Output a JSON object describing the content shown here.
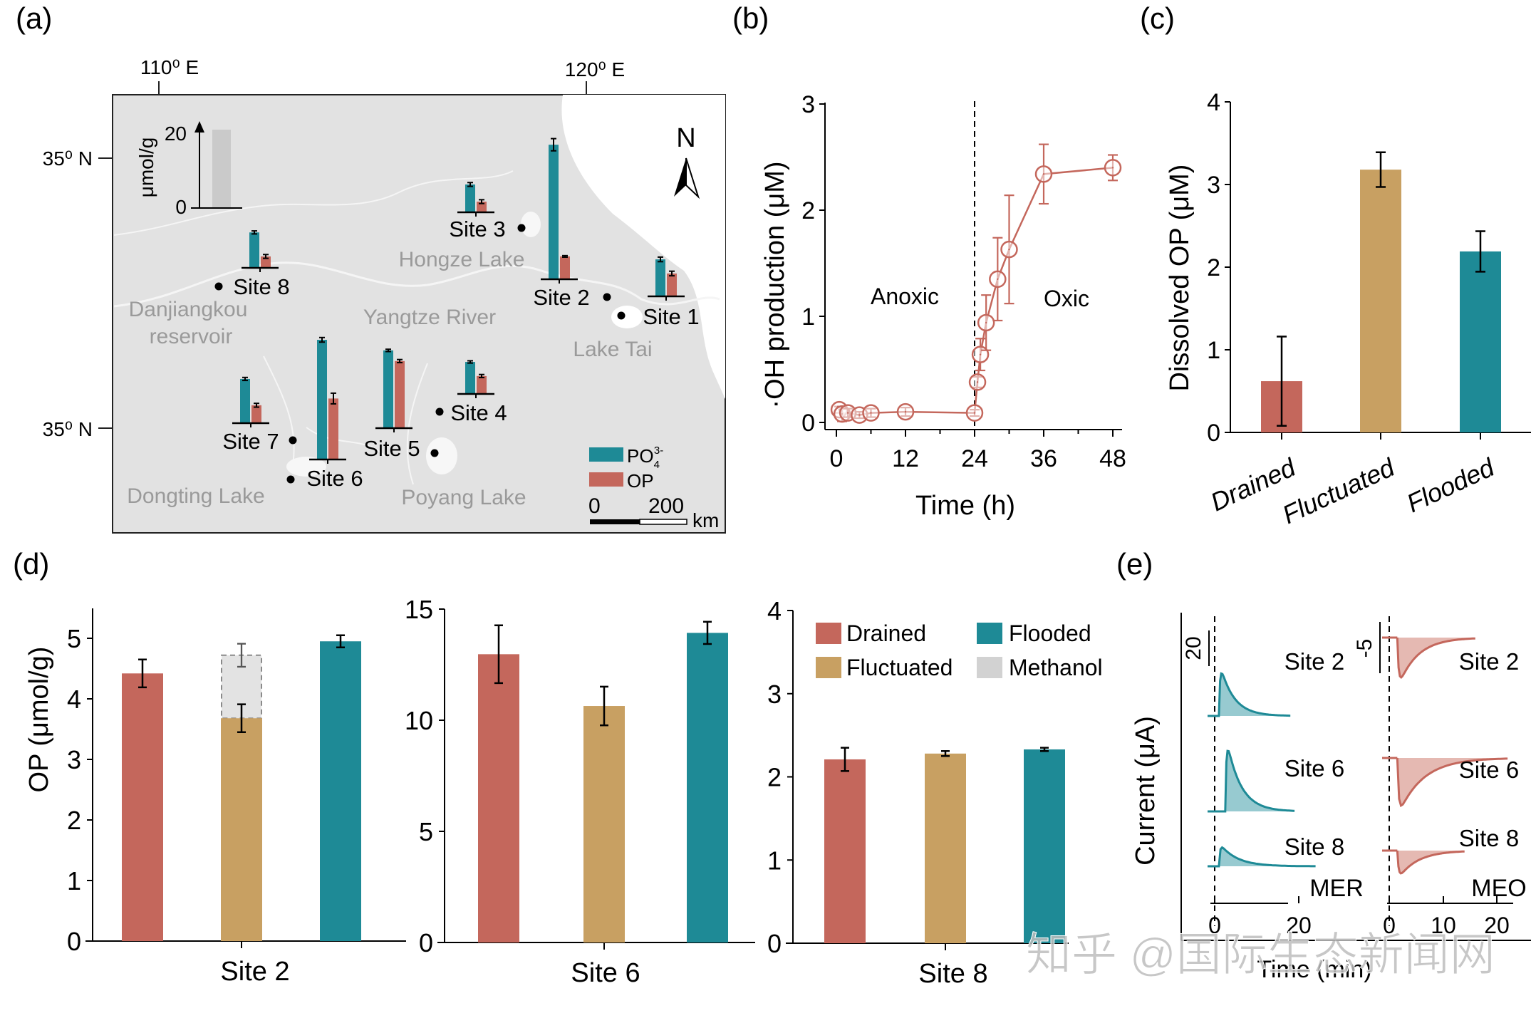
{
  "colors": {
    "drained": "#C4675C",
    "fluctuated": "#C8A062",
    "flooded": "#1E8A96",
    "methanol": "#E3E3E3",
    "po4": "#1E8A96",
    "op": "#C4675C",
    "map_land": "#E2E2E2",
    "map_label": "#9A9A9A",
    "series_b": "#C4675C",
    "mer_fill": "#8CC4CB",
    "meo_fill": "#E2B1AA"
  },
  "panel_labels": {
    "a": "(a)",
    "b": "(b)",
    "c": "(c)",
    "d": "(d)",
    "e": "(e)"
  },
  "watermark": "知乎 @国际生态新闻网",
  "chart_data": [
    {
      "id": "a",
      "type": "map-bar",
      "title": "",
      "coords": {
        "lon_ticks": [
          "110⁰ E",
          "120⁰ E"
        ],
        "lat_ticks": [
          "35⁰ N",
          "35⁰ N"
        ]
      },
      "north_label": "N",
      "scale_bar": {
        "start": "0",
        "end": "200",
        "unit": "km"
      },
      "inset_scale": {
        "unit": "μmol/g",
        "ticks": [
          "0",
          "20"
        ],
        "max": 20
      },
      "legend": [
        {
          "name": "PO",
          "sub": "4",
          "sup": "3-",
          "color_key": "po4"
        },
        {
          "name": "OP",
          "color_key": "op"
        }
      ],
      "place_labels": [
        "Hongze Lake",
        "Danjiangkou",
        "reservoir",
        "Yangtze River",
        "Lake Tai",
        "Dongting Lake",
        "Poyang Lake"
      ],
      "sites": [
        {
          "label": "Site 1",
          "po4": 9.7,
          "po4_err": 0.6,
          "op": 6.0,
          "op_err": 0.6
        },
        {
          "label": "Site 2",
          "po4": 35.3,
          "po4_err": 1.6,
          "op": 6.0,
          "op_err": 0.2
        },
        {
          "label": "Site 3",
          "po4": 7.3,
          "po4_err": 0.5,
          "op": 2.8,
          "op_err": 0.5
        },
        {
          "label": "Site 4",
          "po4": 8.4,
          "po4_err": 0.3,
          "op": 4.7,
          "op_err": 0.4
        },
        {
          "label": "Site 5",
          "po4": 20.4,
          "po4_err": 0.3,
          "op": 17.6,
          "op_err": 0.4
        },
        {
          "label": "Site 6",
          "po4": 31.4,
          "po4_err": 0.6,
          "op": 16.0,
          "op_err": 1.4
        },
        {
          "label": "Site 7",
          "po4": 11.6,
          "po4_err": 0.4,
          "op": 4.7,
          "op_err": 0.5
        },
        {
          "label": "Site 8",
          "po4": 9.3,
          "po4_err": 0.4,
          "op": 3.0,
          "op_err": 0.5
        }
      ]
    },
    {
      "id": "b",
      "type": "line",
      "title": "",
      "xlabel": "Time (h)",
      "ylabel": "·OH production (μM)",
      "xlim": [
        -1,
        50
      ],
      "ylim": [
        -0.1,
        3
      ],
      "xticks": [
        0,
        12,
        24,
        36,
        48
      ],
      "yticks": [
        0,
        1,
        2,
        3
      ],
      "annotations": [
        "Anoxic",
        "Oxic"
      ],
      "divider_x": 24,
      "series": [
        {
          "name": "·OH",
          "x": [
            0.5,
            1,
            2,
            4,
            6,
            12,
            24,
            24.5,
            25,
            26,
            28,
            30,
            36,
            48
          ],
          "y": [
            0.12,
            0.08,
            0.09,
            0.07,
            0.09,
            0.1,
            0.09,
            0.38,
            0.64,
            0.94,
            1.35,
            1.63,
            2.34,
            2.4
          ],
          "err": [
            0.03,
            0.07,
            0.04,
            0.03,
            0.04,
            0.04,
            0.03,
            0.05,
            0.15,
            0.26,
            0.39,
            0.51,
            0.28,
            0.12
          ]
        }
      ]
    },
    {
      "id": "c",
      "type": "bar",
      "title": "",
      "xlabel": "",
      "ylabel": "Dissolved OP (μM)",
      "ylim": [
        0,
        4
      ],
      "yticks": [
        0,
        1,
        2,
        3,
        4
      ],
      "categories": [
        "Drained",
        "Fluctuated",
        "Flooded"
      ],
      "values": [
        0.62,
        3.18,
        2.19
      ],
      "errors": [
        0.54,
        0.21,
        0.245
      ]
    },
    {
      "id": "d",
      "type": "bar",
      "ylabel": "OP (μmol/g)",
      "legend": [
        "Drained",
        "Fluctuated",
        "Flooded",
        "Methanol"
      ],
      "subplots": [
        {
          "xlabel": "Site 2",
          "ylim": [
            0,
            5.5
          ],
          "yticks": [
            0,
            1,
            2,
            3,
            4,
            5
          ],
          "categories": [
            "Drained",
            "Fluctuated",
            "Flooded"
          ],
          "values": [
            4.42,
            3.68,
            4.95
          ],
          "errors": [
            0.23,
            0.23,
            0.1
          ],
          "methanol": {
            "category": "Fluctuated",
            "total": 4.72,
            "error": 0.19
          }
        },
        {
          "xlabel": "Site 6",
          "ylim": [
            0,
            15
          ],
          "yticks": [
            0,
            5,
            10,
            15
          ],
          "categories": [
            "Drained",
            "Fluctuated",
            "Flooded"
          ],
          "values": [
            12.97,
            10.64,
            13.93
          ],
          "errors": [
            1.3,
            0.87,
            0.5
          ]
        },
        {
          "xlabel": "Site 8",
          "ylim": [
            0,
            4
          ],
          "yticks": [
            0,
            1,
            2,
            3,
            4
          ],
          "categories": [
            "Drained",
            "Fluctuated",
            "Flooded"
          ],
          "values": [
            2.21,
            2.28,
            2.33
          ],
          "errors": [
            0.14,
            0.03,
            0.02
          ]
        }
      ]
    },
    {
      "id": "e",
      "type": "line",
      "ylabel": "Current (μA)",
      "xlabel": "Time (min)",
      "panels": [
        {
          "name": "MER",
          "scale_label": "20",
          "xticks": [
            0,
            20
          ],
          "xlim": [
            0,
            27
          ],
          "traces": [
            {
              "label": "Site 2",
              "onset": 1,
              "peak": 26,
              "tau": 3.2,
              "end": 18
            },
            {
              "label": "Site 6",
              "onset": 2.5,
              "peak": 37,
              "tau": 3.3,
              "end": 19
            },
            {
              "label": "Site 8",
              "onset": 1,
              "peak": 11,
              "tau": 4.0,
              "end": 24
            }
          ]
        },
        {
          "name": "MEO",
          "scale_label": "-5",
          "xticks": [
            0,
            10,
            20
          ],
          "xlim": [
            0,
            22
          ],
          "traces": [
            {
              "label": "Site 2",
              "onset": 1.5,
              "peak": -14,
              "tau": 3.5,
              "end": 16
            },
            {
              "label": "Site 6",
              "onset": 1.5,
              "peak": -16,
              "tau": 4.5,
              "end": 22
            },
            {
              "label": "Site 8",
              "onset": 1.5,
              "peak": -8,
              "tau": 3.5,
              "end": 14
            }
          ]
        }
      ]
    }
  ]
}
